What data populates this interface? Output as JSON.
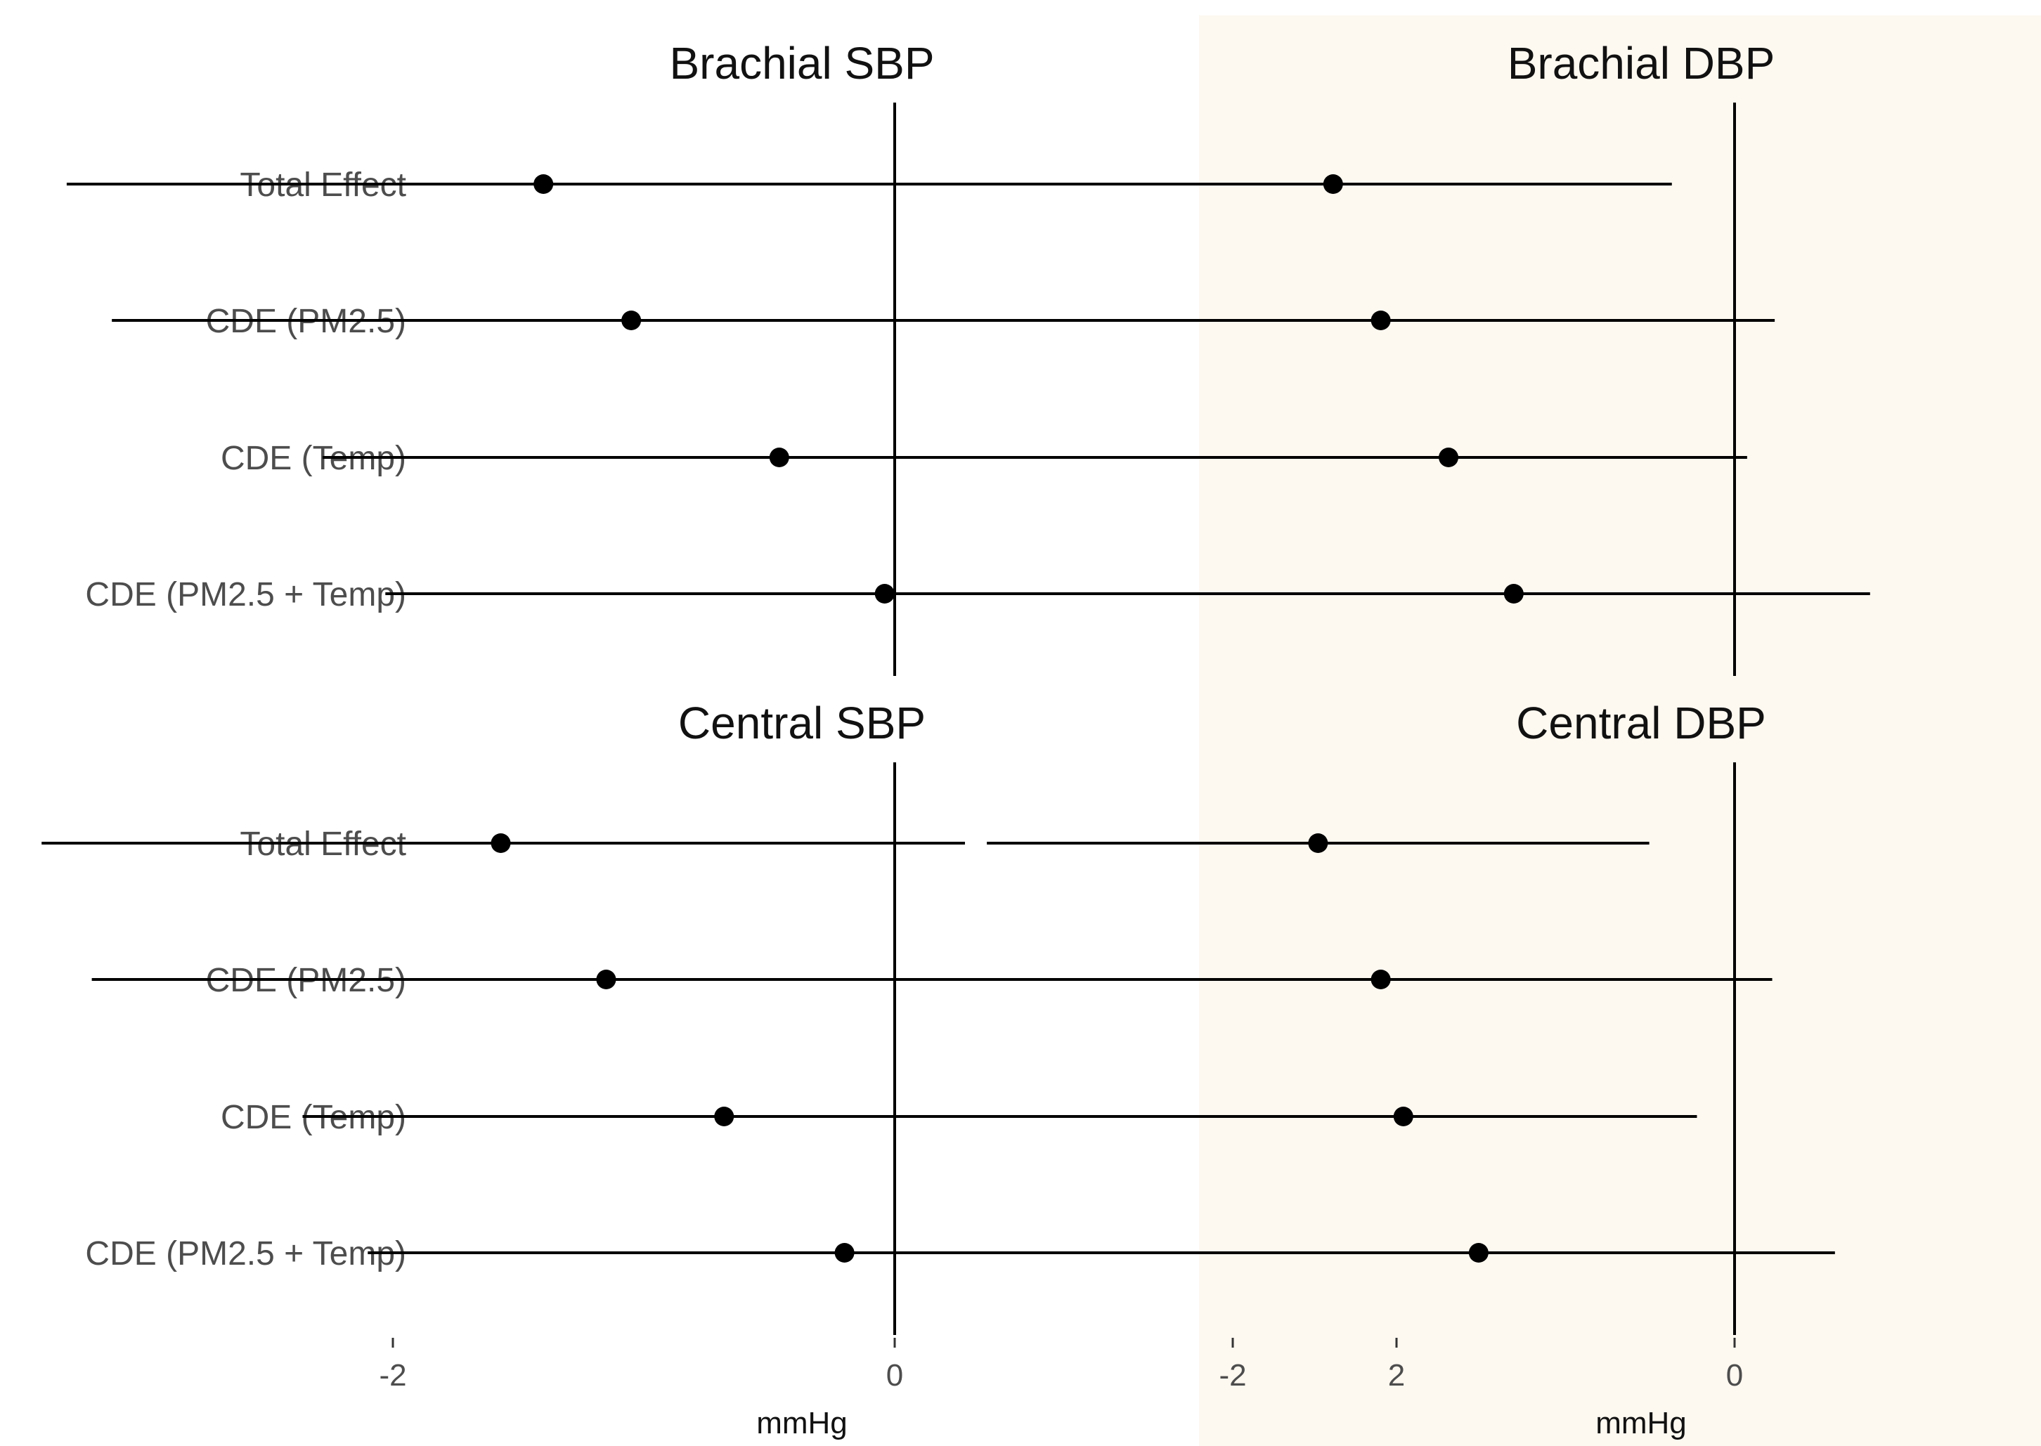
{
  "chart_data": [
    {
      "type": "forest",
      "title": "Brachial SBP",
      "categories": [
        "Total Effect",
        "CDE (PM2.5)",
        "CDE (Temp)",
        "CDE (PM2.5 + Temp)"
      ],
      "estimates": [
        -1.4,
        -1.05,
        -0.46,
        -0.04
      ],
      "lower": [
        -3.3,
        -3.12,
        -2.28,
        -2.03
      ],
      "upper": [
        0.51,
        1.01,
        1.36,
        1.96
      ],
      "xlim": [
        -3.5,
        2.2
      ],
      "xticks": [
        -2,
        0,
        2
      ],
      "show_x_axis": false,
      "xlabel": ""
    },
    {
      "type": "forest",
      "title": "Brachial DBP",
      "categories": [
        "Total Effect",
        "CDE (PM2.5)",
        "CDE (Temp)",
        "CDE (PM2.5 + Temp)"
      ],
      "estimates": [
        -1.6,
        -1.41,
        -1.14,
        -0.88
      ],
      "lower": [
        -2.96,
        -2.96,
        -2.32,
        -2.29
      ],
      "upper": [
        -0.25,
        0.16,
        0.05,
        0.54
      ],
      "xlim": [
        -3.5,
        2.2
      ],
      "xticks": [
        -2,
        0,
        2
      ],
      "show_x_axis": false,
      "xlabel": ""
    },
    {
      "type": "forest",
      "title": "Central SBP",
      "categories": [
        "Total Effect",
        "CDE (PM2.5)",
        "CDE (Temp)",
        "CDE (PM2.5 + Temp)"
      ],
      "estimates": [
        -1.57,
        -1.15,
        -0.68,
        -0.2
      ],
      "lower": [
        -3.4,
        -3.2,
        -2.36,
        -2.1
      ],
      "upper": [
        0.28,
        0.89,
        1.0,
        1.7
      ],
      "xlim": [
        -3.5,
        2.2
      ],
      "xticks": [
        -2,
        0,
        2
      ],
      "show_x_axis": true,
      "xlabel": "mmHg"
    },
    {
      "type": "forest",
      "title": "Central DBP",
      "categories": [
        "Total Effect",
        "CDE (PM2.5)",
        "CDE (Temp)",
        "CDE (PM2.5 + Temp)"
      ],
      "estimates": [
        -1.66,
        -1.41,
        -1.32,
        -1.02
      ],
      "lower": [
        -2.98,
        -2.96,
        -2.49,
        -2.44
      ],
      "upper": [
        -0.34,
        0.15,
        -0.15,
        0.4
      ],
      "xlim": [
        -3.5,
        2.2
      ],
      "xticks": [
        -2,
        0,
        2
      ],
      "show_x_axis": true,
      "xlabel": "mmHg"
    }
  ],
  "colors": {
    "background": "#ffffff",
    "highlight_column": "#fdf8f0",
    "marks": "#000000",
    "label_text": "#4d4d4d",
    "title_text": "#111111"
  }
}
